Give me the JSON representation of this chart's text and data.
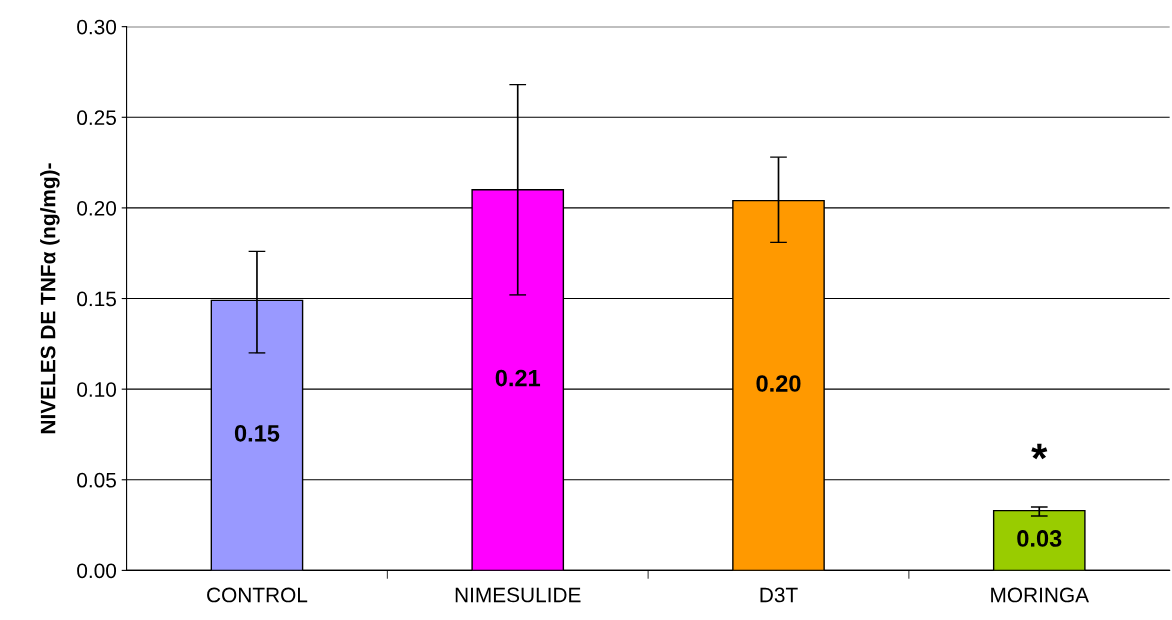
{
  "chart_data": {
    "type": "bar",
    "ylabel": "NIVELES DE TNFα (ng/mg)-",
    "categories": [
      "CONTROL",
      "NIMESULIDE",
      "D3T",
      "MORINGA"
    ],
    "values": [
      0.149,
      0.21,
      0.204,
      0.033
    ],
    "colors": [
      "#9999ff",
      "#ff00ff",
      "#ff9900",
      "#99cc00"
    ],
    "errors": [
      [
        0.12,
        0.176
      ],
      [
        0.152,
        0.268
      ],
      [
        0.181,
        0.228
      ],
      [
        0.03,
        0.035
      ]
    ],
    "value_labels": [
      "0.15",
      "0.21",
      "0.20",
      "0.03"
    ],
    "annotations": [
      "*"
    ],
    "ylim": [
      0,
      0.3
    ],
    "yticks": [
      {
        "value": 0,
        "label": "0.00"
      },
      {
        "value": 0.05,
        "label": "0.05"
      },
      {
        "value": 0.1,
        "label": "0.10"
      },
      {
        "value": 0.15,
        "label": "0.15"
      },
      {
        "value": 0.2,
        "label": "0.20"
      },
      {
        "value": 0.25,
        "label": "0.25"
      },
      {
        "value": 0.3,
        "label": "0.30"
      }
    ],
    "grid": "y",
    "legend": false
  }
}
